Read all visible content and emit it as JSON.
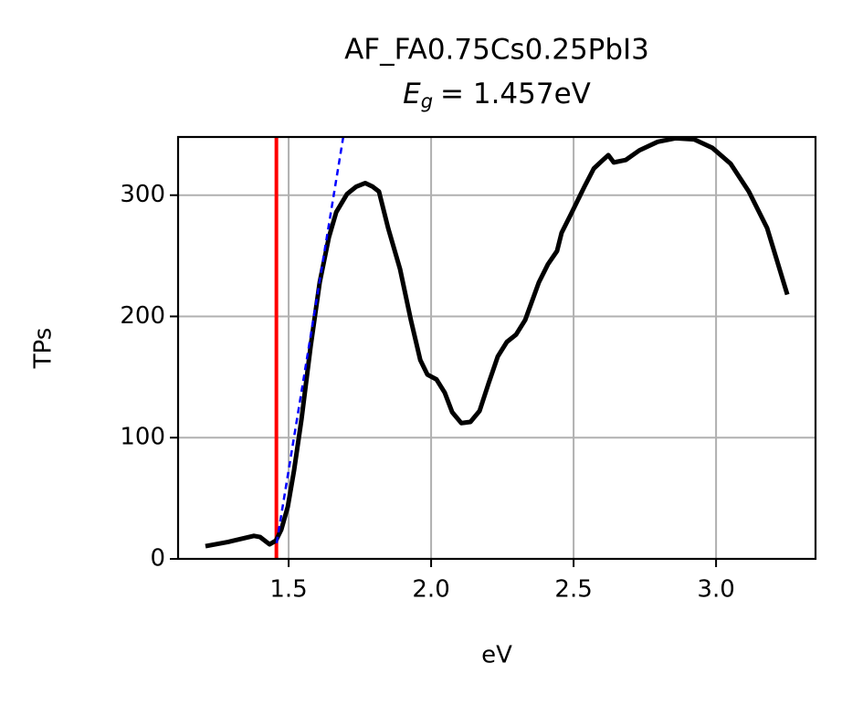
{
  "chart_data": {
    "type": "line",
    "title": "AF_FA0.75Cs0.25PbI3",
    "subtitle": {
      "symbol": "E",
      "subscript": "g",
      "text": "= 1.457eV"
    },
    "xlabel": "eV",
    "ylabel": "TPs",
    "xlim": [
      1.112,
      3.349
    ],
    "ylim": [
      0,
      348
    ],
    "xticks": [
      1.5,
      {
        "value": 2,
        "label": "2.0"
      },
      2.5,
      {
        "value": 3,
        "label": "3.0"
      }
    ],
    "yticks": [
      0,
      100,
      200,
      300
    ],
    "grid": true,
    "vline": {
      "x": 1.457,
      "color": "#ff0000"
    },
    "series": [
      {
        "color": "#000000",
        "style": "solid",
        "x": [
          1.208,
          1.288,
          1.378,
          1.4,
          1.433,
          1.455,
          1.474,
          1.497,
          1.519,
          1.545,
          1.577,
          1.609,
          1.641,
          1.667,
          1.705,
          1.737,
          1.769,
          1.795,
          1.817,
          1.849,
          1.891,
          1.929,
          1.962,
          1.987,
          2.019,
          2.048,
          2.074,
          2.106,
          2.138,
          2.17,
          2.202,
          2.234,
          2.266,
          2.298,
          2.33,
          2.378,
          2.41,
          2.442,
          2.458,
          2.49,
          2.538,
          2.571,
          2.603,
          2.622,
          2.641,
          2.683,
          2.731,
          2.795,
          2.859,
          2.923,
          2.987,
          3.051,
          3.115,
          3.179,
          3.25
        ],
        "values": [
          10.5,
          14,
          19,
          18,
          12,
          15,
          24,
          43,
          73,
          115,
          175,
          228,
          265,
          286,
          301,
          307,
          310,
          307,
          303,
          273,
          239,
          197,
          164,
          152,
          148,
          137,
          121,
          112,
          113,
          122,
          145,
          167,
          179,
          185,
          197,
          228,
          243,
          254,
          269,
          284,
          307,
          322,
          329,
          333,
          327,
          329,
          337,
          344,
          347,
          346,
          339,
          326,
          303,
          273,
          218
        ]
      },
      {
        "color": "#0000ff",
        "style": "dashed",
        "x": [
          1.458,
          1.7
        ],
        "values": [
          13,
          360
        ]
      }
    ]
  }
}
